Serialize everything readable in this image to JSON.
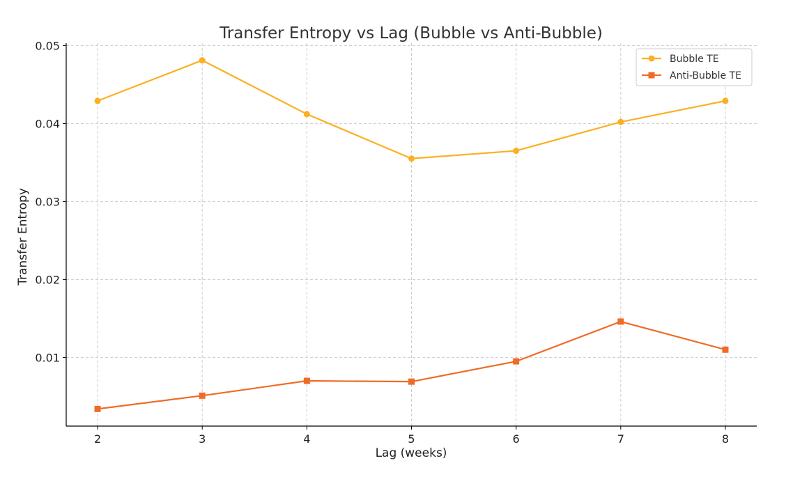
{
  "chart_data": {
    "type": "line",
    "title": "Transfer Entropy vs Lag (Bubble vs Anti-Bubble)",
    "xlabel": "Lag (weeks)",
    "ylabel": "Transfer Entropy",
    "x": [
      2,
      3,
      4,
      5,
      6,
      7,
      8
    ],
    "xlim": [
      1.7,
      8.3
    ],
    "ylim": [
      0.0012,
      0.0503
    ],
    "xticks": [
      "2",
      "3",
      "4",
      "5",
      "6",
      "7",
      "8"
    ],
    "yticks": [
      "0.01",
      "0.02",
      "0.03",
      "0.04",
      "0.05"
    ],
    "ytick_values": [
      0.01,
      0.02,
      0.03,
      0.04,
      0.05
    ],
    "grid": true,
    "legend_position": "top-right",
    "series": [
      {
        "name": "Bubble TE",
        "marker": "circle",
        "color": "#FBB022",
        "values": [
          0.0429,
          0.0481,
          0.0412,
          0.0355,
          0.0365,
          0.0402,
          0.0429
        ]
      },
      {
        "name": "Anti-Bubble TE",
        "marker": "square",
        "color": "#F06B26",
        "values": [
          0.0034,
          0.0051,
          0.007,
          0.0069,
          0.0095,
          0.0146,
          0.011
        ]
      }
    ]
  }
}
